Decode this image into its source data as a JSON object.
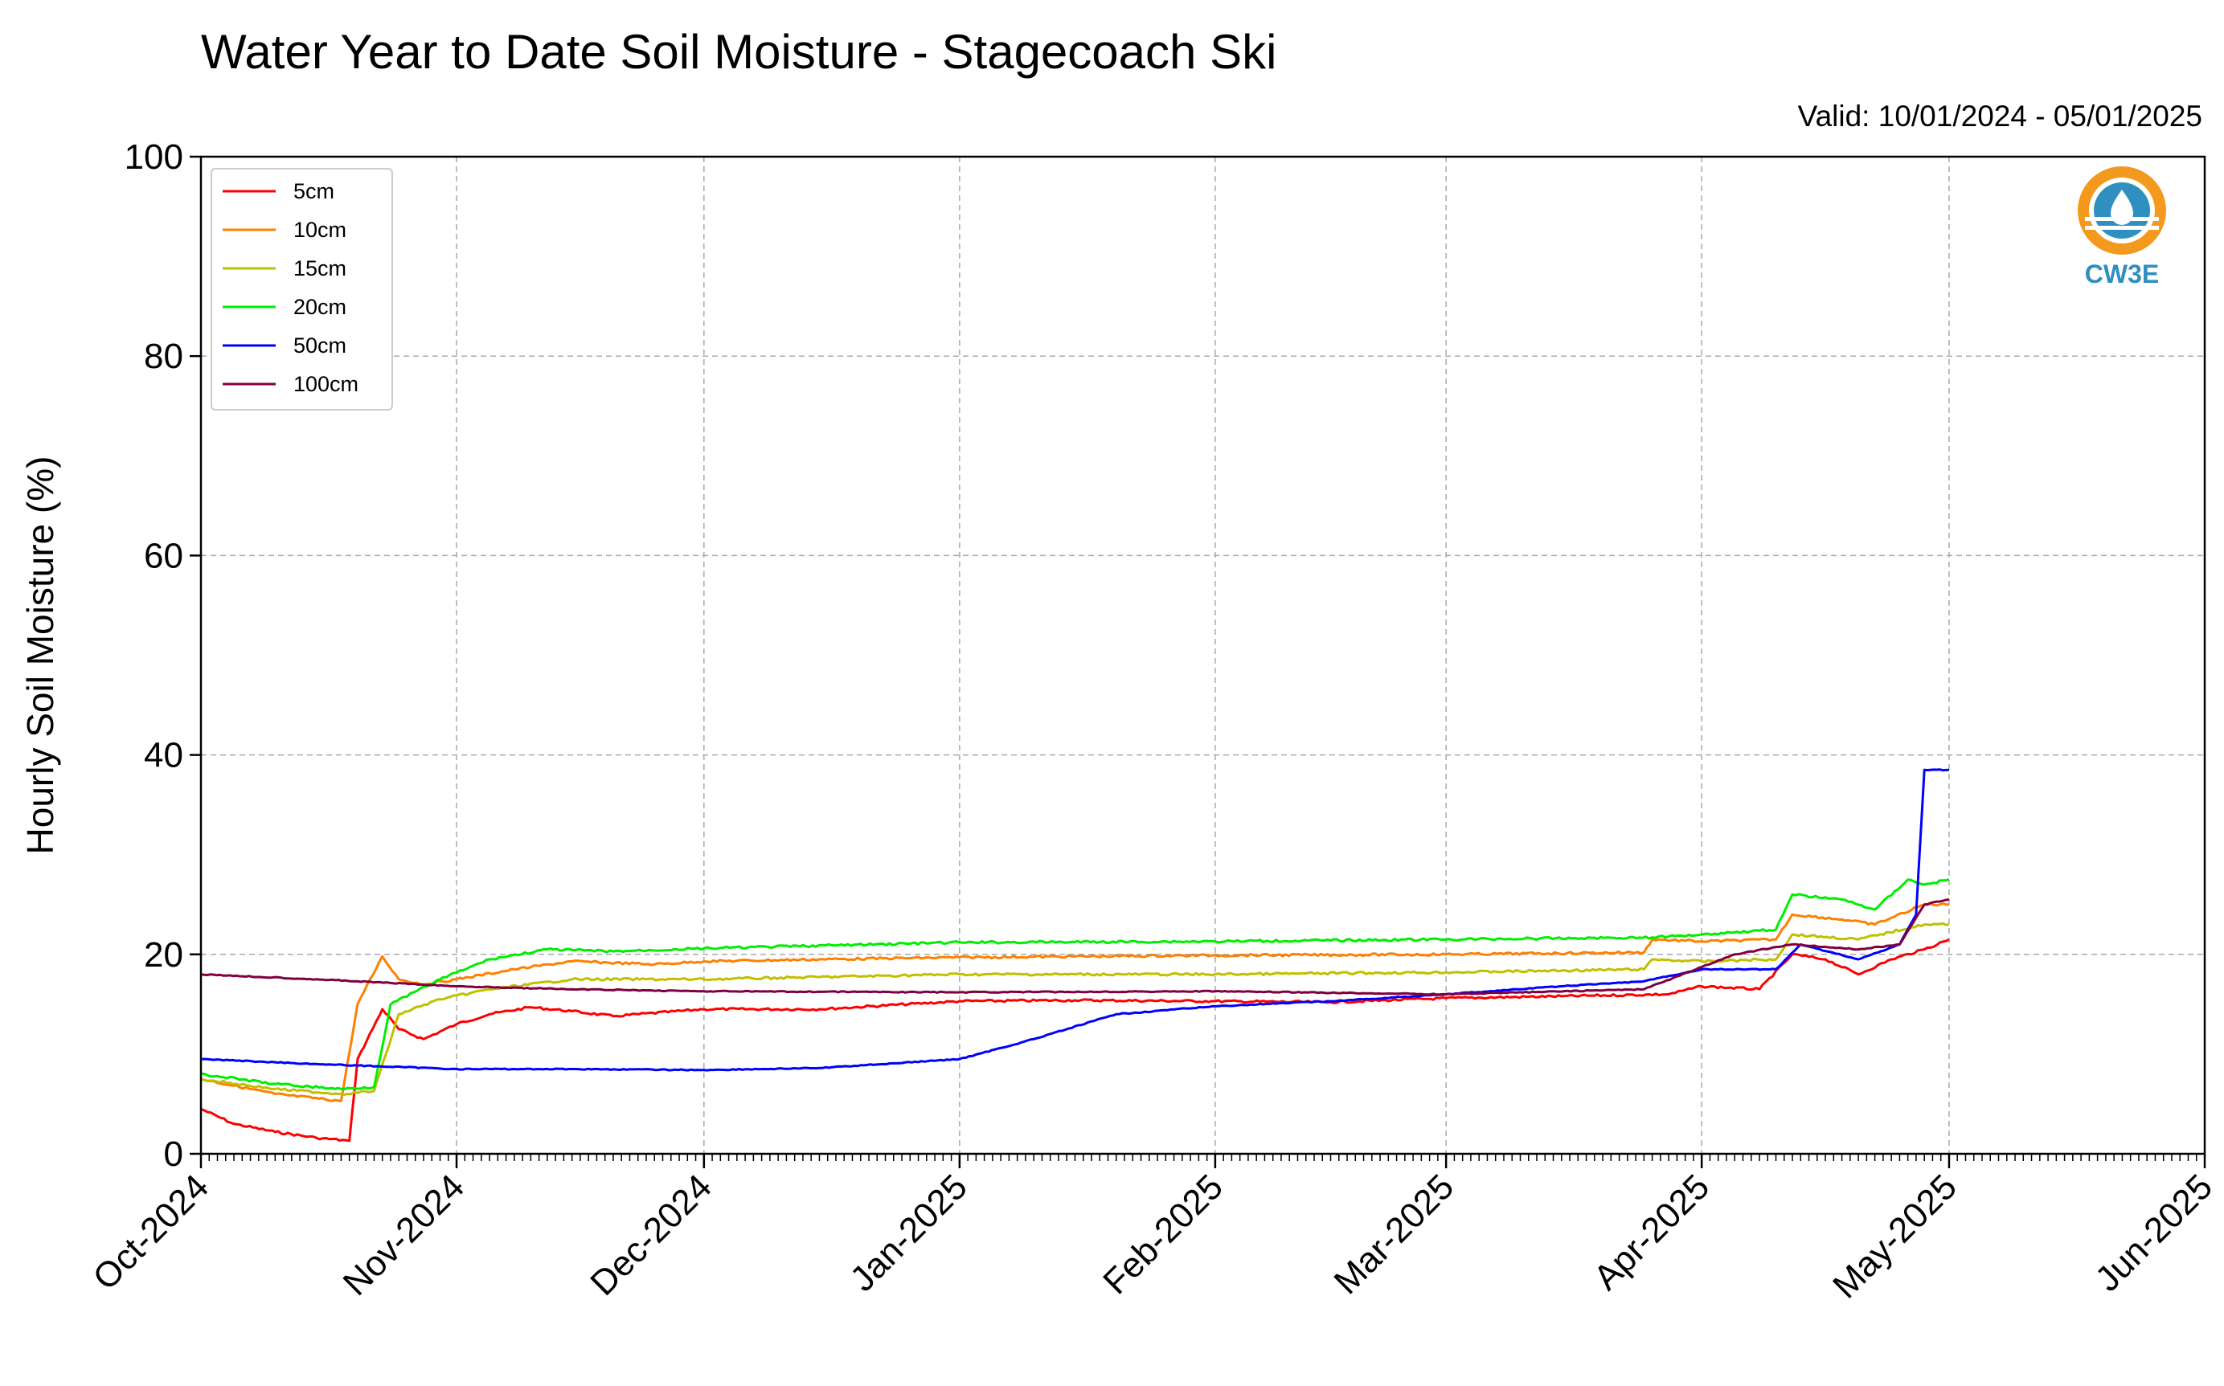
{
  "chart_data": {
    "type": "line",
    "title": "Water Year to Date Soil Moisture - Stagecoach Ski",
    "subtitle": "Valid: 10/01/2024 - 05/01/2025",
    "ylabel": "Hourly Soil Moisture (%)",
    "xlabel": "",
    "ylim": [
      0,
      100
    ],
    "yticks": [
      "0",
      "20",
      "40",
      "60",
      "80",
      "100"
    ],
    "xlim": [
      "2024-10-01",
      "2025-06-01"
    ],
    "xticks": [
      {
        "date": "2024-10-01",
        "label": "Oct-2024"
      },
      {
        "date": "2024-11-01",
        "label": "Nov-2024"
      },
      {
        "date": "2024-12-01",
        "label": "Dec-2024"
      },
      {
        "date": "2025-01-01",
        "label": "Jan-2025"
      },
      {
        "date": "2025-02-01",
        "label": "Feb-2025"
      },
      {
        "date": "2025-03-01",
        "label": "Mar-2025"
      },
      {
        "date": "2025-04-01",
        "label": "Apr-2025"
      },
      {
        "date": "2025-05-01",
        "label": "May-2025"
      },
      {
        "date": "2025-06-01",
        "label": "Jun-2025"
      }
    ],
    "grid": true,
    "legend_position": "top-left",
    "series": [
      {
        "name": "5cm",
        "color": "#ff0000",
        "x": [
          "2024-10-01",
          "2024-10-05",
          "2024-10-10",
          "2024-10-15",
          "2024-10-19",
          "2024-10-20",
          "2024-10-23",
          "2024-10-25",
          "2024-10-28",
          "2024-11-01",
          "2024-11-05",
          "2024-11-10",
          "2024-11-15",
          "2024-11-20",
          "2024-12-01",
          "2024-12-15",
          "2025-01-01",
          "2025-01-15",
          "2025-02-01",
          "2025-02-15",
          "2025-03-01",
          "2025-03-15",
          "2025-03-28",
          "2025-04-01",
          "2025-04-08",
          "2025-04-12",
          "2025-04-16",
          "2025-04-20",
          "2025-04-24",
          "2025-04-28",
          "2025-05-01"
        ],
        "y": [
          4.5,
          3.0,
          2.2,
          1.6,
          1.3,
          9.5,
          14.5,
          12.5,
          11.5,
          13.0,
          14.0,
          14.7,
          14.3,
          13.8,
          14.5,
          14.5,
          15.3,
          15.4,
          15.3,
          15.2,
          15.6,
          15.8,
          16.0,
          16.8,
          16.5,
          20.0,
          19.5,
          18.0,
          19.5,
          20.5,
          21.5
        ]
      },
      {
        "name": "10cm",
        "color": "#ff8000",
        "x": [
          "2024-10-01",
          "2024-10-10",
          "2024-10-18",
          "2024-10-20",
          "2024-10-23",
          "2024-10-25",
          "2024-10-28",
          "2024-11-01",
          "2024-11-08",
          "2024-11-15",
          "2024-11-25",
          "2024-12-01",
          "2024-12-15",
          "2025-01-01",
          "2025-02-01",
          "2025-03-01",
          "2025-03-25",
          "2025-03-26",
          "2025-04-01",
          "2025-04-10",
          "2025-04-12",
          "2025-04-18",
          "2025-04-22",
          "2025-04-28",
          "2025-05-01"
        ],
        "y": [
          7.5,
          6.0,
          5.3,
          15.0,
          19.8,
          17.5,
          17.0,
          17.5,
          18.5,
          19.3,
          19.0,
          19.3,
          19.5,
          19.7,
          19.9,
          20.0,
          20.2,
          21.5,
          21.3,
          21.5,
          24.0,
          23.5,
          23.0,
          25.0,
          25.0
        ]
      },
      {
        "name": "15cm",
        "color": "#c0c000",
        "x": [
          "2024-10-01",
          "2024-10-10",
          "2024-10-18",
          "2024-10-22",
          "2024-10-25",
          "2024-10-30",
          "2024-11-05",
          "2024-11-15",
          "2024-12-01",
          "2025-01-01",
          "2025-02-01",
          "2025-03-01",
          "2025-03-25",
          "2025-03-26",
          "2025-04-01",
          "2025-04-10",
          "2025-04-12",
          "2025-04-20",
          "2025-04-28",
          "2025-05-01"
        ],
        "y": [
          7.5,
          6.5,
          6.0,
          6.3,
          14.0,
          15.5,
          16.5,
          17.5,
          17.5,
          18.0,
          18.0,
          18.2,
          18.5,
          19.5,
          19.3,
          19.5,
          22.0,
          21.5,
          23.0,
          23.0
        ]
      },
      {
        "name": "20cm",
        "color": "#00ee00",
        "x": [
          "2024-10-01",
          "2024-10-10",
          "2024-10-18",
          "2024-10-22",
          "2024-10-24",
          "2024-10-30",
          "2024-11-05",
          "2024-11-12",
          "2024-11-20",
          "2024-12-01",
          "2025-01-01",
          "2025-02-01",
          "2025-03-01",
          "2025-03-26",
          "2025-04-01",
          "2025-04-10",
          "2025-04-12",
          "2025-04-18",
          "2025-04-22",
          "2025-04-26",
          "2025-04-28",
          "2025-05-01"
        ],
        "y": [
          8.0,
          7.0,
          6.5,
          6.7,
          15.0,
          17.5,
          19.5,
          20.5,
          20.3,
          20.6,
          21.2,
          21.3,
          21.5,
          21.7,
          22.0,
          22.5,
          26.0,
          25.5,
          24.5,
          27.5,
          27.0,
          27.5
        ]
      },
      {
        "name": "50cm",
        "color": "#0000ff",
        "x": [
          "2024-10-01",
          "2024-10-15",
          "2024-11-01",
          "2024-11-15",
          "2024-12-01",
          "2024-12-15",
          "2025-01-01",
          "2025-01-10",
          "2025-01-20",
          "2025-02-01",
          "2025-02-15",
          "2025-03-01",
          "2025-03-15",
          "2025-03-25",
          "2025-04-01",
          "2025-04-10",
          "2025-04-13",
          "2025-04-20",
          "2025-04-25",
          "2025-04-27",
          "2025-04-28",
          "2025-05-01"
        ],
        "y": [
          9.5,
          9.0,
          8.5,
          8.5,
          8.4,
          8.6,
          9.5,
          11.5,
          14.0,
          14.8,
          15.3,
          16.0,
          16.8,
          17.3,
          18.5,
          18.5,
          21.0,
          19.5,
          21.0,
          24.0,
          38.5,
          38.5
        ]
      },
      {
        "name": "100cm",
        "color": "#800040",
        "x": [
          "2024-10-01",
          "2024-10-15",
          "2024-11-01",
          "2024-11-15",
          "2024-12-01",
          "2025-01-01",
          "2025-02-01",
          "2025-03-01",
          "2025-03-25",
          "2025-04-05",
          "2025-04-12",
          "2025-04-20",
          "2025-04-25",
          "2025-04-28",
          "2025-05-01"
        ],
        "y": [
          18.0,
          17.5,
          16.8,
          16.5,
          16.3,
          16.2,
          16.3,
          16.0,
          16.5,
          20.0,
          21.0,
          20.5,
          21.0,
          25.0,
          25.5
        ]
      }
    ]
  },
  "logo": {
    "text": "CW3E",
    "ring_color": "#f39a1e",
    "accent_color": "#2f8fc0"
  }
}
